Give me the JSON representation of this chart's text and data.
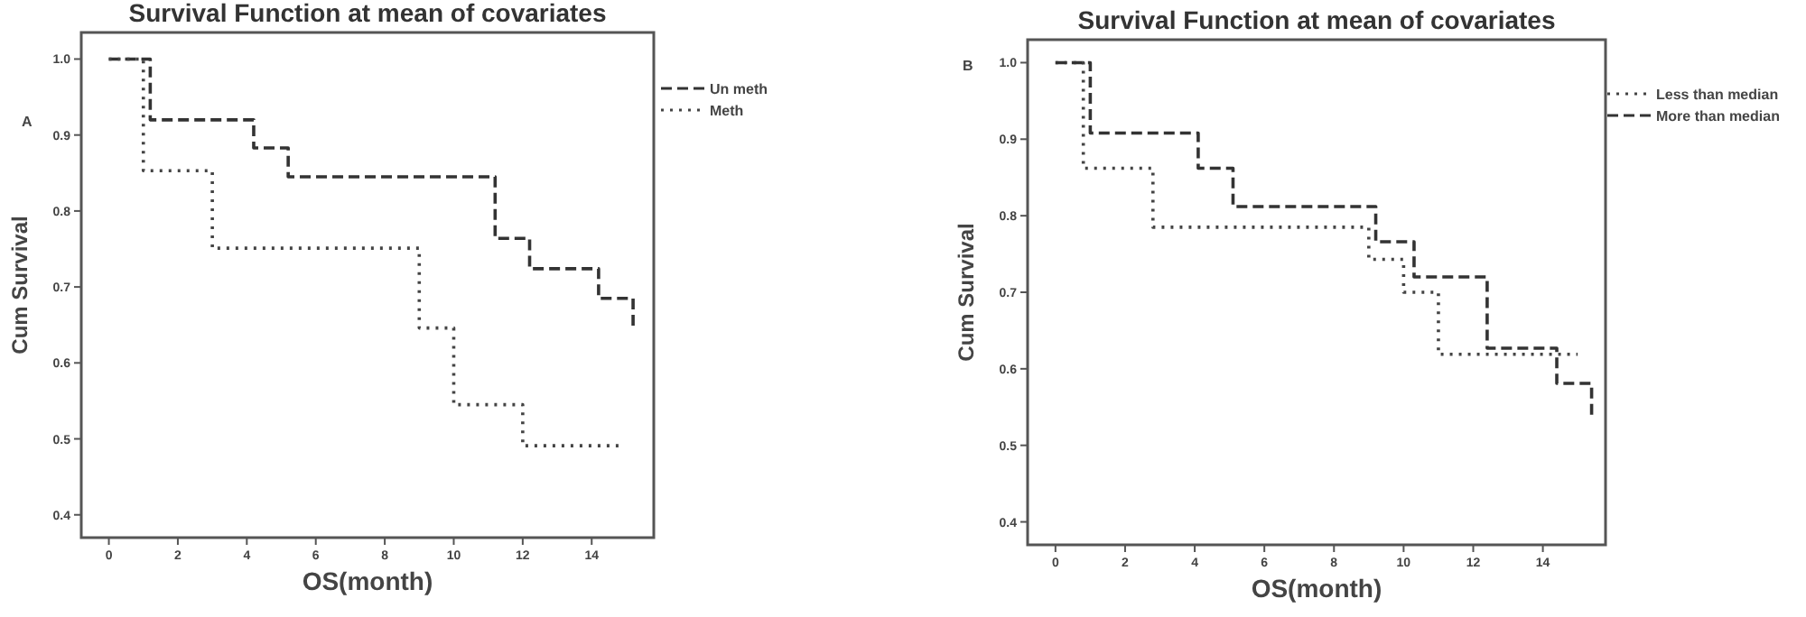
{
  "chart_data": [
    {
      "type": "step",
      "title": "Survival Function at mean of covariates",
      "xlabel": "OS(month)",
      "ylabel": "Cum Survival",
      "annotations": [
        "A"
      ],
      "xlim": [
        -0.8,
        15.8
      ],
      "ylim": [
        0.37,
        1.035
      ],
      "xticks": [
        0,
        2,
        4,
        6,
        8,
        10,
        12,
        14
      ],
      "yticks": [
        0.4,
        0.5,
        0.6,
        0.7,
        0.8,
        0.9,
        {
          "value": 1,
          "label": "1.0"
        }
      ],
      "legend": "top right",
      "grid": false,
      "series": [
        {
          "name": "Un meth",
          "color": "#333333",
          "line_style": "dashed",
          "x": [
            0,
            1.2,
            4.2,
            5.2,
            11.2,
            12.2,
            14.2,
            15.2
          ],
          "values": [
            1.0,
            0.92,
            0.883,
            0.845,
            0.764,
            0.724,
            0.685,
            0.646
          ]
        },
        {
          "name": "Meth",
          "color": "#444444",
          "line_style": "dotted",
          "x": [
            0,
            1.0,
            3.0,
            9.0,
            10.0,
            12.0,
            14.8
          ],
          "values": [
            1.0,
            0.853,
            0.751,
            0.646,
            0.545,
            0.491,
            0.491
          ]
        }
      ]
    },
    {
      "type": "step",
      "title": "Survival Function at mean of covariates",
      "xlabel": "OS(month)",
      "ylabel": "Cum Survival",
      "annotations": [
        "B"
      ],
      "xlim": [
        -0.8,
        15.8
      ],
      "ylim": [
        0.37,
        1.03
      ],
      "xticks": [
        0,
        2,
        4,
        6,
        8,
        10,
        12,
        14
      ],
      "yticks": [
        0.4,
        0.5,
        0.6,
        0.7,
        0.8,
        0.9,
        {
          "value": 1,
          "label": "1.0"
        }
      ],
      "legend": "top right",
      "grid": false,
      "series": [
        {
          "name": "Less than median",
          "color": "#444444",
          "line_style": "dotted",
          "x": [
            0,
            0.8,
            2.8,
            9.0,
            10.0,
            11.0,
            15.0
          ],
          "values": [
            1.0,
            0.862,
            0.785,
            0.743,
            0.7,
            0.619,
            0.619
          ]
        },
        {
          "name": "More than median",
          "color": "#333333",
          "line_style": "dashed",
          "x": [
            0,
            1.0,
            4.1,
            5.1,
            9.2,
            10.3,
            12.4,
            14.4,
            15.4
          ],
          "values": [
            1.0,
            0.908,
            0.862,
            0.812,
            0.766,
            0.72,
            0.627,
            0.581,
            0.536
          ]
        }
      ]
    }
  ]
}
